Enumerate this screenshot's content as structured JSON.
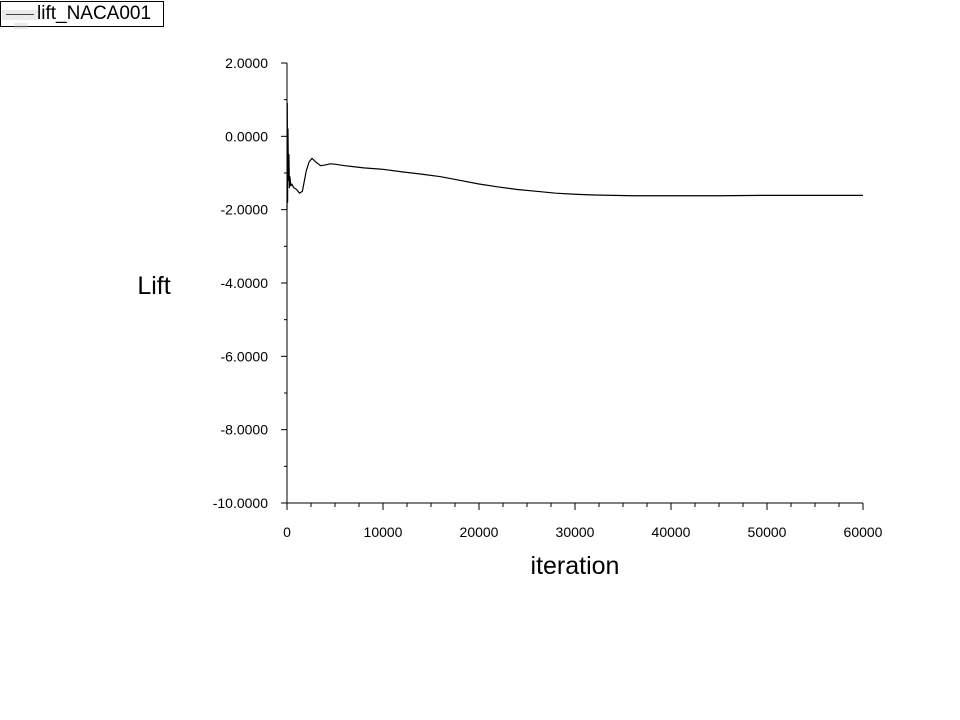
{
  "legend": {
    "label": "lift_NACA001"
  },
  "chart_data": {
    "type": "line",
    "xlabel": "iteration",
    "ylabel": "Lift",
    "xlim": [
      0,
      60000
    ],
    "ylim": [
      -10,
      2
    ],
    "x_ticks": [
      "0",
      "10000",
      "20000",
      "30000",
      "40000",
      "50000",
      "60000"
    ],
    "y_ticks": [
      "2.0000",
      "0.0000",
      "-2.0000",
      "-4.0000",
      "-6.0000",
      "-8.0000",
      "-10.0000"
    ],
    "grid": false,
    "legend_position": "top-left",
    "series": [
      {
        "name": "lift_NACA001",
        "color": "#000000",
        "x": [
          0,
          30,
          60,
          100,
          150,
          200,
          250,
          300,
          400,
          500,
          700,
          1000,
          1300,
          1600,
          2000,
          2300,
          2600,
          3000,
          3500,
          4000,
          4500,
          5000,
          6000,
          7000,
          8000,
          10000,
          12000,
          14000,
          16000,
          18000,
          20000,
          22000,
          24000,
          26000,
          28000,
          30000,
          32000,
          34000,
          36000,
          38000,
          40000,
          45000,
          50000,
          55000,
          60000
        ],
        "y": [
          -2.0,
          0.9,
          -1.8,
          0.2,
          -1.2,
          -0.5,
          -1.4,
          -1.1,
          -1.35,
          -1.3,
          -1.4,
          -1.45,
          -1.55,
          -1.5,
          -0.95,
          -0.7,
          -0.6,
          -0.7,
          -0.8,
          -0.78,
          -0.75,
          -0.76,
          -0.8,
          -0.83,
          -0.86,
          -0.9,
          -0.97,
          -1.03,
          -1.1,
          -1.2,
          -1.3,
          -1.38,
          -1.45,
          -1.5,
          -1.55,
          -1.58,
          -1.6,
          -1.61,
          -1.62,
          -1.62,
          -1.62,
          -1.62,
          -1.61,
          -1.61,
          -1.61
        ]
      }
    ]
  }
}
